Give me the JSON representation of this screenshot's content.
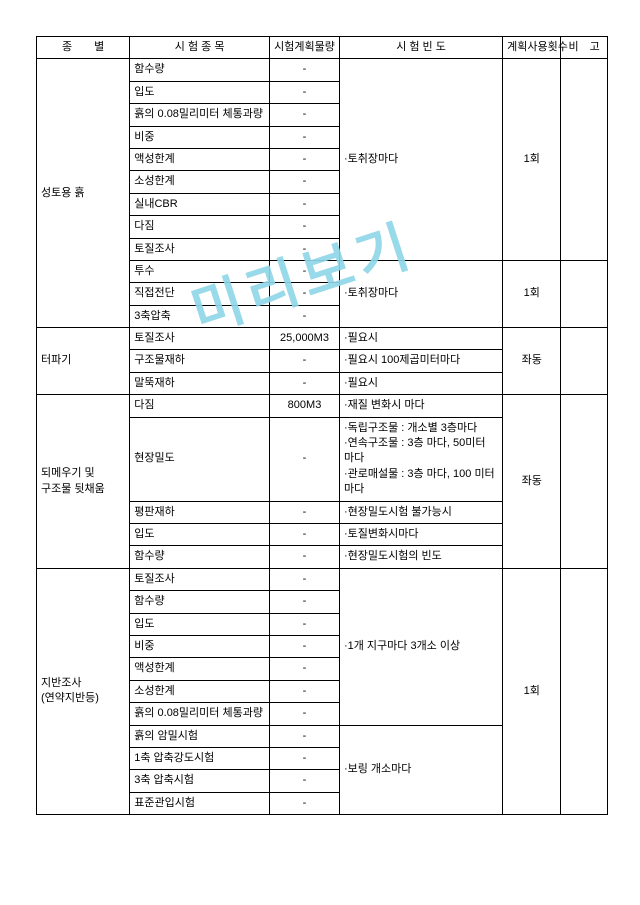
{
  "watermark": "미리보기",
  "headers": {
    "category": "종　　별",
    "item": "시 험 종 목",
    "plan_qty": "시험계획물량",
    "frequency": "시 험 빈 도",
    "plan_count": "계획사용횟수",
    "bigo": "비　고"
  },
  "dash": "-",
  "s1": {
    "category": "성토용 흙",
    "items": [
      "함수량",
      "입도",
      "흙의 0.08밀리미터 체통과량",
      "비중",
      "액성한계",
      "소성한계",
      "실내CBR",
      "다짐",
      "토질조사",
      "투수",
      "직접전단",
      "3축압축"
    ],
    "freq1": "·토취장마다",
    "freq2": "·토취장마다",
    "count": "1회",
    "count2": "1회"
  },
  "s2": {
    "category": "터파기",
    "rows": [
      {
        "item": "토질조사",
        "qty": "25,000M3",
        "freq": "·필요시"
      },
      {
        "item": "구조물재하",
        "qty": "-",
        "freq": "·필요시 100제곱미터마다"
      },
      {
        "item": "말뚝재하",
        "qty": "-",
        "freq": "·필요시"
      }
    ],
    "count": "좌동"
  },
  "s3": {
    "category": "되메우기 및 구조물 뒷채움",
    "rows": [
      {
        "item": "다짐",
        "qty": "800M3",
        "freq": "·재질 변화시 마다"
      },
      {
        "item": "현장밀도",
        "qty": "-",
        "freq": "·독립구조물 : 개소별 3층마다\n·연속구조물 : 3층 마다, 50미터 마다\n·관로매설물 : 3층 마다, 100 미터 마다"
      },
      {
        "item": "평판재하",
        "qty": "-",
        "freq": "·현장밀도시험 불가능시"
      },
      {
        "item": "입도",
        "qty": "-",
        "freq": "·토질변화시마다"
      },
      {
        "item": "함수량",
        "qty": "-",
        "freq": "·현장밀도시험의 빈도"
      }
    ],
    "count": "좌동"
  },
  "s4": {
    "category": "지반조사\n(연약지반등)",
    "items1": [
      "토질조사",
      "함수량",
      "입도",
      "비중",
      "액성한계",
      "소성한계",
      "흙의 0.08밀리미터 체통과량"
    ],
    "items2": [
      "흙의 암밀시험",
      "1축 압축강도시험",
      "3축 압축시험",
      "표준관입시험"
    ],
    "freq1": "·1개 지구마다 3개소 이상",
    "freq2": "·보링 개소마다",
    "count": "1회"
  }
}
